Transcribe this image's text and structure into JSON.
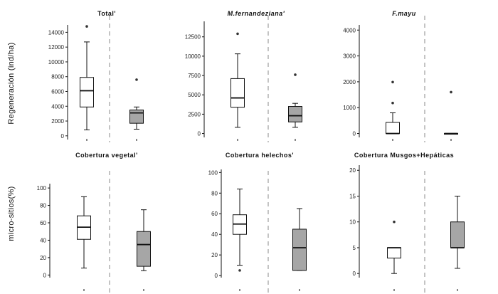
{
  "figure": {
    "ylabel_top": "Regeneración (ind/ha)",
    "ylabel_bottom": "micro-sitios(%)"
  },
  "chart_data": [
    {
      "type": "box",
      "title": "Total'",
      "title_italic": false,
      "ylim": [
        -500,
        15000
      ],
      "yticks": [
        0,
        2000,
        4000,
        6000,
        8000,
        10000,
        12000,
        14000
      ],
      "boxes": [
        {
          "fill": "#ffffff",
          "whisker_low": 800,
          "q1": 3900,
          "median": 6100,
          "q3": 7900,
          "whisker_high": 12700,
          "outliers": [
            14800
          ]
        },
        {
          "fill": "#a6a6a6",
          "whisker_low": 900,
          "q1": 1700,
          "median": 3100,
          "q3": 3500,
          "whisker_high": 3900,
          "outliers": [
            7600
          ]
        }
      ]
    },
    {
      "type": "box",
      "title": "M.fernandeziana'",
      "title_italic": true,
      "ylim": [
        -500,
        14500
      ],
      "yticks": [
        0,
        2500,
        5000,
        7500,
        10000,
        12500
      ],
      "boxes": [
        {
          "fill": "#ffffff",
          "whisker_low": 800,
          "q1": 3400,
          "median": 4600,
          "q3": 7100,
          "whisker_high": 10300,
          "outliers": [
            12900
          ]
        },
        {
          "fill": "#a6a6a6",
          "whisker_low": 800,
          "q1": 1500,
          "median": 2300,
          "q3": 3500,
          "whisker_high": 3900,
          "outliers": [
            7600
          ]
        }
      ]
    },
    {
      "type": "box",
      "title": "F.mayu",
      "title_italic": true,
      "ylim": [
        -150,
        4200
      ],
      "yticks": [
        0,
        1000,
        2000,
        3000,
        4000
      ],
      "boxes": [
        {
          "fill": "#ffffff",
          "whisker_low": 0,
          "q1": 0,
          "median": 0,
          "q3": 430,
          "whisker_high": 800,
          "outliers": [
            1180,
            1990
          ]
        },
        {
          "fill": "#a6a6a6",
          "whisker_low": 0,
          "q1": 0,
          "median": 0,
          "q3": 0,
          "whisker_high": 0,
          "outliers": [
            1600
          ]
        }
      ]
    },
    {
      "type": "box",
      "title": "Cobertura vegetal'",
      "title_italic": false,
      "ylim": [
        -3,
        105
      ],
      "yticks": [
        0,
        20,
        40,
        60,
        80,
        100
      ],
      "boxes": [
        {
          "fill": "#ffffff",
          "whisker_low": 8,
          "q1": 41,
          "median": 55,
          "q3": 68,
          "whisker_high": 90,
          "outliers": []
        },
        {
          "fill": "#a6a6a6",
          "whisker_low": 5,
          "q1": 10,
          "median": 35,
          "q3": 50,
          "whisker_high": 75,
          "outliers": []
        }
      ]
    },
    {
      "type": "box",
      "title": "Cobertura helechos'",
      "title_italic": false,
      "ylim": [
        -2,
        103
      ],
      "yticks": [
        0,
        20,
        40,
        60,
        80,
        100
      ],
      "boxes": [
        {
          "fill": "#ffffff",
          "whisker_low": 10,
          "q1": 40,
          "median": 50,
          "q3": 59,
          "whisker_high": 84,
          "outliers": [
            5
          ]
        },
        {
          "fill": "#a6a6a6",
          "whisker_low": 5,
          "q1": 5,
          "median": 27,
          "q3": 45,
          "whisker_high": 65,
          "outliers": []
        }
      ]
    },
    {
      "type": "box",
      "title": "Cobertura Musgos+Hepáticas",
      "title_italic": false,
      "ylim": [
        -0.8,
        21
      ],
      "yticks": [
        0,
        5,
        10,
        15,
        20
      ],
      "boxes": [
        {
          "fill": "#ffffff",
          "whisker_low": 0,
          "q1": 3,
          "median": 5,
          "q3": 5,
          "whisker_high": 5,
          "outliers": [
            10
          ]
        },
        {
          "fill": "#a6a6a6",
          "whisker_low": 1,
          "q1": 5,
          "median": 5,
          "q3": 10,
          "whisker_high": 15,
          "outliers": []
        }
      ]
    }
  ]
}
